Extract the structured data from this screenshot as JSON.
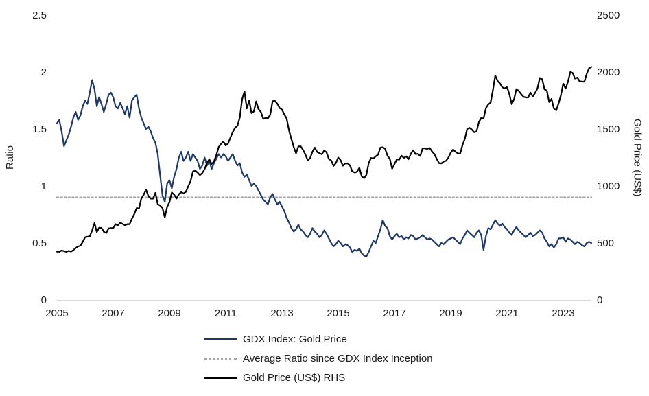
{
  "legend": [
    {
      "label": "GDX Index: Gold Price",
      "color": "#1f3864",
      "style": "solid"
    },
    {
      "label": "Average Ratio since GDX Index Inception",
      "color": "#a6a6a6",
      "style": "dotted"
    },
    {
      "label": "Gold Price (US$) RHS",
      "color": "#000000",
      "style": "solid"
    }
  ],
  "chart_data": {
    "type": "line",
    "frequency": "monthly",
    "x_start_year": 2005,
    "x_end": 2024,
    "grid": false,
    "legend_position": "bottom",
    "x_tick_labels": [
      "2005",
      "2007",
      "2009",
      "2011",
      "2013",
      "2015",
      "2017",
      "2019",
      "2021",
      "2023"
    ],
    "left_axis": {
      "label": "Ratio",
      "ylim": [
        0,
        2.5
      ],
      "ticks": [
        "2.5",
        "2",
        "1.5",
        "1",
        "0.5",
        "0"
      ]
    },
    "right_axis": {
      "label": "Gold Price (US$)",
      "ylim": [
        0,
        2500
      ],
      "ticks": [
        "2500",
        "2000",
        "1500",
        "1000",
        "500",
        "0"
      ]
    },
    "series": [
      {
        "name": "GDX Index: Gold Price",
        "axis": "left",
        "color": "#1f3864",
        "values": [
          1.55,
          1.58,
          1.48,
          1.35,
          1.4,
          1.45,
          1.52,
          1.6,
          1.65,
          1.58,
          1.62,
          1.7,
          1.75,
          1.72,
          1.82,
          1.93,
          1.85,
          1.7,
          1.78,
          1.72,
          1.65,
          1.72,
          1.8,
          1.82,
          1.78,
          1.7,
          1.68,
          1.73,
          1.68,
          1.63,
          1.7,
          1.6,
          1.75,
          1.78,
          1.8,
          1.68,
          1.6,
          1.55,
          1.5,
          1.52,
          1.48,
          1.42,
          1.38,
          1.28,
          1.1,
          0.92,
          0.86,
          1.02,
          1.05,
          0.98,
          1.08,
          1.15,
          1.25,
          1.3,
          1.22,
          1.25,
          1.3,
          1.22,
          1.28,
          1.25,
          1.22,
          1.15,
          1.18,
          1.25,
          1.18,
          1.22,
          1.15,
          1.2,
          1.24,
          1.28,
          1.25,
          1.28,
          1.26,
          1.22,
          1.25,
          1.28,
          1.22,
          1.18,
          1.2,
          1.12,
          1.08,
          1.1,
          1.05,
          1.0,
          1.02,
          1.0,
          0.96,
          0.92,
          0.88,
          0.86,
          0.84,
          0.9,
          0.93,
          0.88,
          0.84,
          0.86,
          0.82,
          0.78,
          0.72,
          0.68,
          0.63,
          0.6,
          0.62,
          0.66,
          0.62,
          0.6,
          0.57,
          0.55,
          0.58,
          0.63,
          0.6,
          0.58,
          0.55,
          0.57,
          0.61,
          0.58,
          0.54,
          0.5,
          0.47,
          0.49,
          0.52,
          0.5,
          0.47,
          0.49,
          0.48,
          0.46,
          0.42,
          0.44,
          0.43,
          0.45,
          0.41,
          0.39,
          0.38,
          0.42,
          0.47,
          0.52,
          0.5,
          0.56,
          0.62,
          0.7,
          0.65,
          0.63,
          0.56,
          0.53,
          0.56,
          0.58,
          0.55,
          0.56,
          0.53,
          0.55,
          0.54,
          0.57,
          0.56,
          0.53,
          0.54,
          0.55,
          0.57,
          0.55,
          0.53,
          0.54,
          0.53,
          0.51,
          0.49,
          0.47,
          0.5,
          0.49,
          0.51,
          0.53,
          0.54,
          0.55,
          0.53,
          0.51,
          0.49,
          0.54,
          0.57,
          0.61,
          0.59,
          0.57,
          0.55,
          0.59,
          0.61,
          0.57,
          0.44,
          0.56,
          0.63,
          0.62,
          0.66,
          0.7,
          0.67,
          0.65,
          0.67,
          0.64,
          0.62,
          0.59,
          0.57,
          0.61,
          0.64,
          0.61,
          0.59,
          0.57,
          0.55,
          0.57,
          0.59,
          0.56,
          0.57,
          0.59,
          0.61,
          0.59,
          0.54,
          0.51,
          0.47,
          0.49,
          0.46,
          0.49,
          0.54,
          0.54,
          0.55,
          0.51,
          0.54,
          0.53,
          0.51,
          0.49,
          0.51,
          0.5,
          0.48,
          0.47,
          0.5,
          0.51,
          0.5
        ]
      },
      {
        "name": "Gold Price (US$) RHS",
        "axis": "right",
        "color": "#000000",
        "values": [
          424,
          423,
          434,
          429,
          422,
          431,
          424,
          437,
          456,
          470,
          476,
          510,
          550,
          555,
          557,
          611,
          675,
          596,
          634,
          632,
          598,
          586,
          627,
          630,
          631,
          665,
          655,
          679,
          667,
          655,
          665,
          665,
          713,
          755,
          806,
          803,
          890,
          922,
          968,
          910,
          889,
          889,
          940,
          839,
          829,
          807,
          725,
          816,
          858,
          943,
          924,
          890,
          928,
          946,
          934,
          949,
          996,
          1043,
          1127,
          1135,
          1118,
          1095,
          1113,
          1148,
          1205,
          1233,
          1193,
          1216,
          1271,
          1342,
          1370,
          1391,
          1356,
          1373,
          1424,
          1474,
          1511,
          1529,
          1600,
          1760,
          1830,
          1680,
          1750,
          1640,
          1654,
          1743,
          1674,
          1650,
          1589,
          1597,
          1594,
          1626,
          1745,
          1747,
          1722,
          1685,
          1671,
          1628,
          1593,
          1487,
          1414,
          1343,
          1287,
          1347,
          1348,
          1316,
          1276,
          1225,
          1244,
          1301,
          1336,
          1299,
          1288,
          1279,
          1311,
          1296,
          1238,
          1223,
          1176,
          1201,
          1250,
          1227,
          1178,
          1198,
          1199,
          1181,
          1128,
          1118,
          1125,
          1159,
          1086,
          1068,
          1097,
          1200,
          1246,
          1242,
          1260,
          1276,
          1337,
          1340,
          1326,
          1266,
          1238,
          1152,
          1192,
          1234,
          1231,
          1266,
          1246,
          1260,
          1236,
          1283,
          1314,
          1280,
          1282,
          1264,
          1331,
          1330,
          1325,
          1334,
          1303,
          1281,
          1238,
          1201,
          1198,
          1215,
          1221,
          1250,
          1292,
          1320,
          1301,
          1286,
          1284,
          1359,
          1413,
          1499,
          1511,
          1495,
          1471,
          1479,
          1561,
          1597,
          1592,
          1683,
          1716,
          1732,
          1843,
          1969,
          1922,
          1900,
          1866,
          1858,
          1867,
          1808,
          1718,
          1762,
          1850,
          1835,
          1807,
          1784,
          1777,
          1777,
          1820,
          1787,
          1817,
          1856,
          1948,
          1937,
          1848,
          1837,
          1737,
          1765,
          1681,
          1664,
          1725,
          1797,
          1898,
          1855,
          1913,
          2000,
          1992,
          1943,
          1951,
          1918,
          1916,
          1915,
          1984,
          2034,
          2045
        ]
      },
      {
        "name": "Average Ratio since GDX Index Inception",
        "axis": "left",
        "color": "#a6a6a6",
        "line_style": "dotted",
        "constant_value": 0.9
      }
    ]
  }
}
